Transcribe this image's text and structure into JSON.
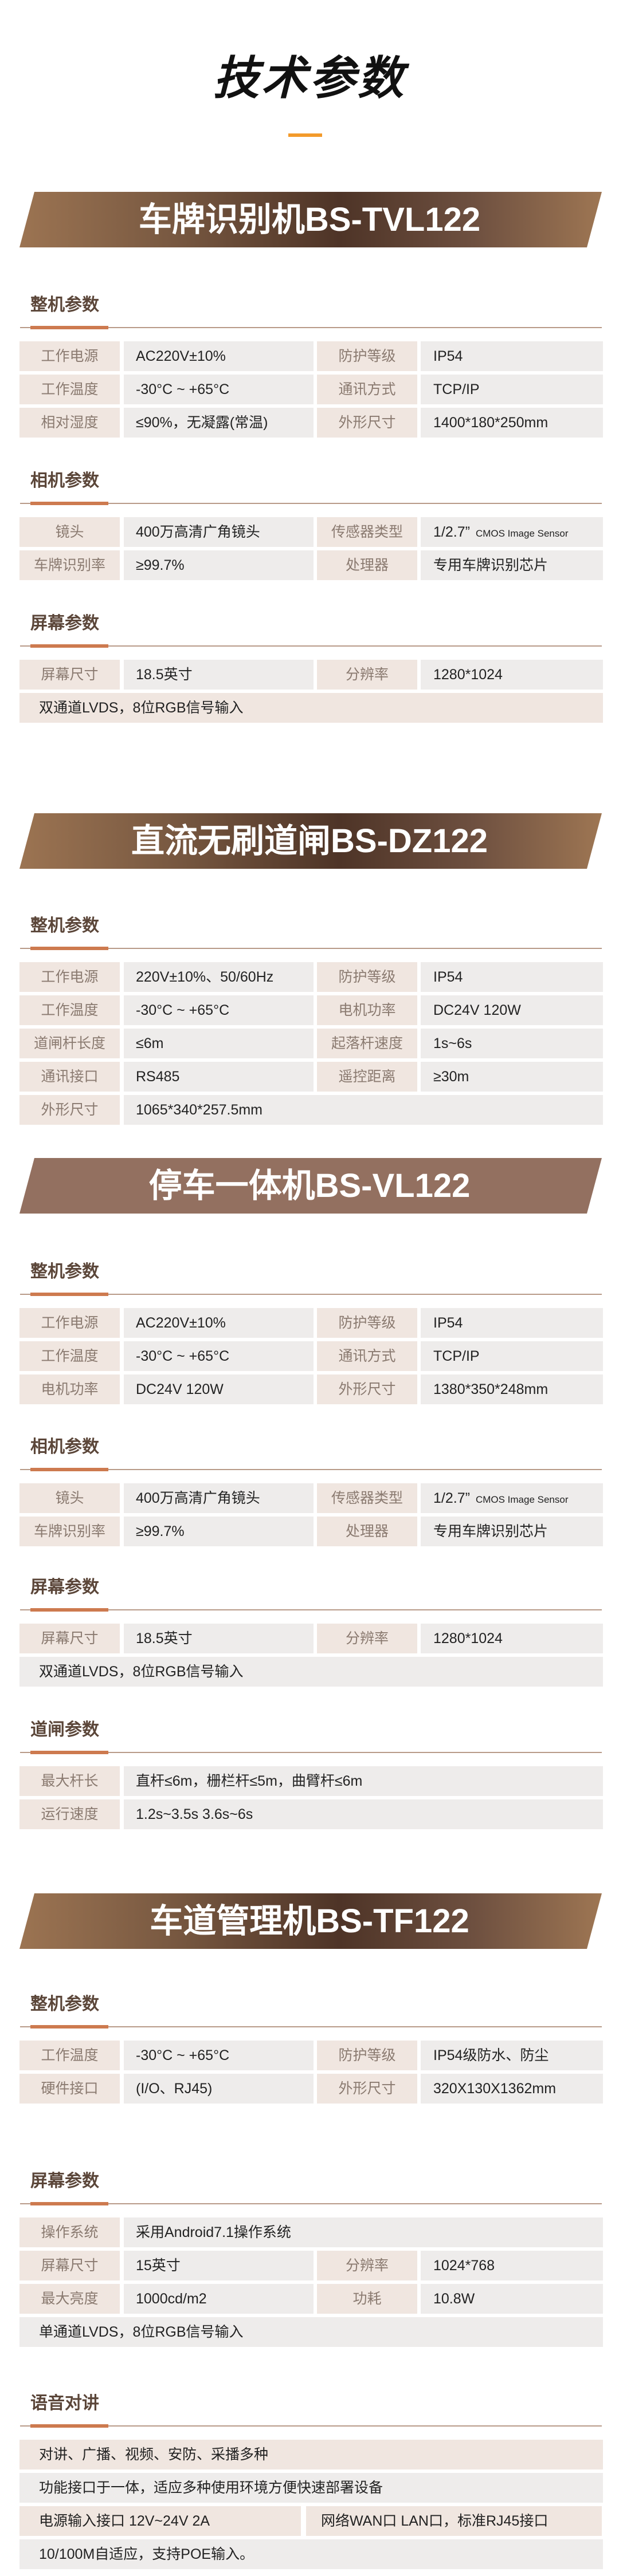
{
  "page_title": "技术参数",
  "colors": {
    "accent": "#cd7a4f",
    "title_bar": "#f39a2b",
    "heading": "#5b4639",
    "label_bg": "#f0e6e0",
    "value_bg": "#eeeceb",
    "banner_dark": "#4e3427",
    "banner_light": "#9c7452",
    "banner_flat": "#937060"
  },
  "products": [
    {
      "title": "车牌识别机BS-TVL122",
      "style": "gradient",
      "groups": [
        {
          "heading": "整机参数",
          "rows": [
            {
              "type": "pair",
              "cells": [
                {
                  "label": "工作电源",
                  "value": "AC220V±10%"
                },
                {
                  "label": "防护等级",
                  "value": "IP54"
                }
              ]
            },
            {
              "type": "pair",
              "cells": [
                {
                  "label": "工作温度",
                  "value": "-30°C ~ +65°C"
                },
                {
                  "label": "通讯方式",
                  "value": "TCP/IP"
                }
              ]
            },
            {
              "type": "pair",
              "cells": [
                {
                  "label": "相对湿度",
                  "value": "≤90%，无凝露(常温)"
                },
                {
                  "label": "外形尺寸",
                  "value": "1400*180*250mm"
                }
              ]
            }
          ]
        },
        {
          "heading": "相机参数",
          "rows": [
            {
              "type": "pair",
              "cells": [
                {
                  "label": "镜头",
                  "value": "400万高清广角镜头"
                },
                {
                  "label": "传感器类型",
                  "value": "1/2.7”",
                  "value_small": "CMOS Image Sensor"
                }
              ]
            },
            {
              "type": "pair",
              "cells": [
                {
                  "label": "车牌识别率",
                  "value": "≥99.7%"
                },
                {
                  "label": "处理器",
                  "value": "专用车牌识别芯片"
                }
              ]
            }
          ]
        },
        {
          "heading": "屏幕参数",
          "rows": [
            {
              "type": "pair",
              "cells": [
                {
                  "label": "屏幕尺寸",
                  "value": "18.5英寸"
                },
                {
                  "label": "分辨率",
                  "value": "1280*1024"
                }
              ]
            },
            {
              "type": "full",
              "tone": "beige",
              "text": "双通道LVDS，8位RGB信号输入"
            }
          ]
        }
      ]
    },
    {
      "title": "直流无刷道闸BS-DZ122",
      "style": "gradient",
      "groups": [
        {
          "heading": "整机参数",
          "rows": [
            {
              "type": "pair",
              "cells": [
                {
                  "label": "工作电源",
                  "value": "220V±10%、50/60Hz"
                },
                {
                  "label": "防护等级",
                  "value": "IP54"
                }
              ]
            },
            {
              "type": "pair",
              "cells": [
                {
                  "label": "工作温度",
                  "value": "-30°C ~ +65°C"
                },
                {
                  "label": "电机功率",
                  "value": "DC24V  120W"
                }
              ]
            },
            {
              "type": "pair",
              "cells": [
                {
                  "label": "道闸杆长度",
                  "value": "≤6m"
                },
                {
                  "label": "起落杆速度",
                  "value": "1s~6s"
                }
              ]
            },
            {
              "type": "pair",
              "cells": [
                {
                  "label": "通讯接口",
                  "value": "RS485"
                },
                {
                  "label": "遥控距离",
                  "value": "≥30m"
                }
              ]
            },
            {
              "type": "single",
              "label": "外形尺寸",
              "value": "1065*340*257.5mm"
            }
          ]
        }
      ]
    },
    {
      "title": "停车一体机BS-VL122",
      "style": "flat",
      "groups": [
        {
          "heading": "整机参数",
          "rows": [
            {
              "type": "pair",
              "cells": [
                {
                  "label": "工作电源",
                  "value": "AC220V±10%"
                },
                {
                  "label": "防护等级",
                  "value": "IP54"
                }
              ]
            },
            {
              "type": "pair",
              "cells": [
                {
                  "label": "工作温度",
                  "value": "-30°C ~ +65°C"
                },
                {
                  "label": "通讯方式",
                  "value": "TCP/IP"
                }
              ]
            },
            {
              "type": "pair",
              "cells": [
                {
                  "label": "电机功率",
                  "value": "DC24V  120W"
                },
                {
                  "label": "外形尺寸",
                  "value": "1380*350*248mm"
                }
              ]
            }
          ]
        },
        {
          "heading": "相机参数",
          "rows": [
            {
              "type": "pair",
              "cells": [
                {
                  "label": "镜头",
                  "value": "400万高清广角镜头"
                },
                {
                  "label": "传感器类型",
                  "value": "1/2.7”",
                  "value_small": "CMOS Image Sensor"
                }
              ]
            },
            {
              "type": "pair",
              "cells": [
                {
                  "label": "车牌识别率",
                  "value": "≥99.7%"
                },
                {
                  "label": "处理器",
                  "value": "专用车牌识别芯片"
                }
              ]
            }
          ]
        },
        {
          "heading": "屏幕参数",
          "rows": [
            {
              "type": "pair",
              "cells": [
                {
                  "label": "屏幕尺寸",
                  "value": "18.5英寸"
                },
                {
                  "label": "分辨率",
                  "value": "1280*1024"
                }
              ]
            },
            {
              "type": "full",
              "tone": "gray",
              "text": "双通道LVDS，8位RGB信号输入"
            }
          ]
        },
        {
          "heading": "道闸参数",
          "rows": [
            {
              "type": "single",
              "label": "最大杆长",
              "value": "直杆≤6m，栅栏杆≤5m，曲臂杆≤6m"
            },
            {
              "type": "single",
              "label": "运行速度",
              "value": "1.2s~3.5s   3.6s~6s"
            }
          ]
        }
      ]
    },
    {
      "title": "车道管理机BS-TF122",
      "style": "gradient",
      "groups": [
        {
          "heading": "整机参数",
          "rows": [
            {
              "type": "pair",
              "cells": [
                {
                  "label": "工作温度",
                  "value": "-30°C ~ +65°C"
                },
                {
                  "label": "防护等级",
                  "value": "IP54级防水、防尘"
                }
              ]
            },
            {
              "type": "pair",
              "cells": [
                {
                  "label": "硬件接口",
                  "value": "(I/O、RJ45)"
                },
                {
                  "label": "外形尺寸",
                  "value": "320X130X1362mm"
                }
              ]
            }
          ]
        },
        {
          "heading": "屏幕参数",
          "rows": [
            {
              "type": "single",
              "label": "操作系统",
              "value": "采用Android7.1操作系统"
            },
            {
              "type": "pair",
              "cells": [
                {
                  "label": "屏幕尺寸",
                  "value": "15英寸"
                },
                {
                  "label": "分辨率",
                  "value": "1024*768"
                }
              ]
            },
            {
              "type": "pair",
              "cells": [
                {
                  "label": "最大亮度",
                  "value": "1000cd/m2"
                },
                {
                  "label": "功耗",
                  "value": "10.8W"
                }
              ]
            },
            {
              "type": "full",
              "tone": "gray",
              "text": "单通道LVDS，8位RGB信号输入"
            }
          ]
        },
        {
          "heading": "语音对讲",
          "rows": [
            {
              "type": "full",
              "tone": "beige",
              "text": "对讲、广播、视频、安防、采播多种"
            },
            {
              "type": "full",
              "tone": "gray",
              "text": "功能接口于一体，适应多种使用环境方便快速部署设备"
            },
            {
              "type": "split",
              "tone": "beige",
              "texts": [
                "电源输入接口  12V~24V 2A",
                "网络WAN口 LAN口，标准RJ45接口"
              ]
            },
            {
              "type": "full",
              "tone": "gray",
              "text": "10/100M自适应，支持POE输入。"
            }
          ]
        }
      ]
    }
  ]
}
